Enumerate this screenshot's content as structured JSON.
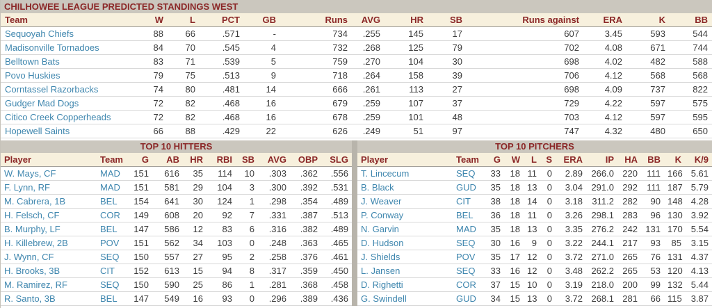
{
  "page_title": "CHILHOWEE LEAGUE PREDICTED STANDINGS WEST",
  "colors": {
    "header_text": "#8B2727",
    "bar_background": "#CBC7BE",
    "column_header_background": "#F7F0DD",
    "link_blue": "#3E86AE",
    "data_text": "#3C3C3C",
    "divider": "#B8B4AB"
  },
  "standings": {
    "headers": [
      "Team",
      "W",
      "L",
      "PCT",
      "GB",
      "Runs",
      "AVG",
      "HR",
      "SB",
      "Runs against",
      "ERA",
      "K",
      "BB"
    ],
    "rows": [
      [
        "Sequoyah Chiefs",
        "88",
        "66",
        ".571",
        "-",
        "734",
        ".255",
        "145",
        "17",
        "607",
        "3.45",
        "593",
        "544"
      ],
      [
        "Madisonville Tornadoes",
        "84",
        "70",
        ".545",
        "4",
        "732",
        ".268",
        "125",
        "79",
        "702",
        "4.08",
        "671",
        "744"
      ],
      [
        "Belltown Bats",
        "83",
        "71",
        ".539",
        "5",
        "759",
        ".270",
        "104",
        "30",
        "698",
        "4.02",
        "482",
        "588"
      ],
      [
        "Povo Huskies",
        "79",
        "75",
        ".513",
        "9",
        "718",
        ".264",
        "158",
        "39",
        "706",
        "4.12",
        "568",
        "568"
      ],
      [
        "Corntassel Razorbacks",
        "74",
        "80",
        ".481",
        "14",
        "666",
        ".261",
        "113",
        "27",
        "698",
        "4.09",
        "737",
        "822"
      ],
      [
        "Gudger Mad Dogs",
        "72",
        "82",
        ".468",
        "16",
        "679",
        ".259",
        "107",
        "37",
        "729",
        "4.22",
        "597",
        "575"
      ],
      [
        "Citico Creek Copperheads",
        "72",
        "82",
        ".468",
        "16",
        "678",
        ".259",
        "101",
        "48",
        "703",
        "4.12",
        "597",
        "595"
      ],
      [
        "Hopewell Saints",
        "66",
        "88",
        ".429",
        "22",
        "626",
        ".249",
        "51",
        "97",
        "747",
        "4.32",
        "480",
        "650"
      ]
    ]
  },
  "hitters": {
    "title": "TOP 10 HITTERS",
    "headers": [
      "Player",
      "Team",
      "G",
      "AB",
      "HR",
      "RBI",
      "SB",
      "AVG",
      "OBP",
      "SLG"
    ],
    "rows": [
      [
        "W. Mays, CF",
        "MAD",
        "151",
        "616",
        "35",
        "114",
        "10",
        ".303",
        ".362",
        ".556"
      ],
      [
        "F. Lynn, RF",
        "MAD",
        "151",
        "581",
        "29",
        "104",
        "3",
        ".300",
        ".392",
        ".531"
      ],
      [
        "M. Cabrera, 1B",
        "BEL",
        "154",
        "641",
        "30",
        "124",
        "1",
        ".298",
        ".354",
        ".489"
      ],
      [
        "H. Felsch, CF",
        "COR",
        "149",
        "608",
        "20",
        "92",
        "7",
        ".331",
        ".387",
        ".513"
      ],
      [
        "B. Murphy, LF",
        "BEL",
        "147",
        "586",
        "12",
        "83",
        "6",
        ".316",
        ".382",
        ".489"
      ],
      [
        "H. Killebrew, 2B",
        "POV",
        "151",
        "562",
        "34",
        "103",
        "0",
        ".248",
        ".363",
        ".465"
      ],
      [
        "J. Wynn, CF",
        "SEQ",
        "150",
        "557",
        "27",
        "95",
        "2",
        ".258",
        ".376",
        ".461"
      ],
      [
        "H. Brooks, 3B",
        "CIT",
        "152",
        "613",
        "15",
        "94",
        "8",
        ".317",
        ".359",
        ".450"
      ],
      [
        "M. Ramirez, RF",
        "SEQ",
        "150",
        "590",
        "25",
        "86",
        "1",
        ".281",
        ".368",
        ".458"
      ],
      [
        "R. Santo, 3B",
        "BEL",
        "147",
        "549",
        "16",
        "93",
        "0",
        ".296",
        ".389",
        ".436"
      ]
    ]
  },
  "pitchers": {
    "title": "TOP 10 PITCHERS",
    "headers": [
      "Player",
      "Team",
      "G",
      "W",
      "L",
      "S",
      "ERA",
      "IP",
      "HA",
      "BB",
      "K",
      "K/9"
    ],
    "rows": [
      [
        "T. Lincecum",
        "SEQ",
        "33",
        "18",
        "11",
        "0",
        "2.89",
        "266.0",
        "220",
        "111",
        "166",
        "5.61"
      ],
      [
        "B. Black",
        "GUD",
        "35",
        "18",
        "13",
        "0",
        "3.04",
        "291.0",
        "292",
        "111",
        "187",
        "5.79"
      ],
      [
        "J. Weaver",
        "CIT",
        "38",
        "18",
        "14",
        "0",
        "3.18",
        "311.2",
        "282",
        "90",
        "148",
        "4.28"
      ],
      [
        "P. Conway",
        "BEL",
        "36",
        "18",
        "11",
        "0",
        "3.26",
        "298.1",
        "283",
        "96",
        "130",
        "3.92"
      ],
      [
        "N. Garvin",
        "MAD",
        "35",
        "18",
        "13",
        "0",
        "3.35",
        "276.2",
        "242",
        "131",
        "170",
        "5.54"
      ],
      [
        "D. Hudson",
        "SEQ",
        "30",
        "16",
        "9",
        "0",
        "3.22",
        "244.1",
        "217",
        "93",
        "85",
        "3.15"
      ],
      [
        "J. Shields",
        "POV",
        "35",
        "17",
        "12",
        "0",
        "3.72",
        "271.0",
        "265",
        "76",
        "131",
        "4.37"
      ],
      [
        "L. Jansen",
        "SEQ",
        "33",
        "16",
        "12",
        "0",
        "3.48",
        "262.2",
        "265",
        "53",
        "120",
        "4.13"
      ],
      [
        "D. Righetti",
        "COR",
        "37",
        "15",
        "10",
        "0",
        "3.19",
        "218.0",
        "200",
        "99",
        "132",
        "5.44"
      ],
      [
        "G. Swindell",
        "GUD",
        "34",
        "15",
        "13",
        "0",
        "3.72",
        "268.1",
        "281",
        "66",
        "115",
        "3.87"
      ]
    ]
  }
}
